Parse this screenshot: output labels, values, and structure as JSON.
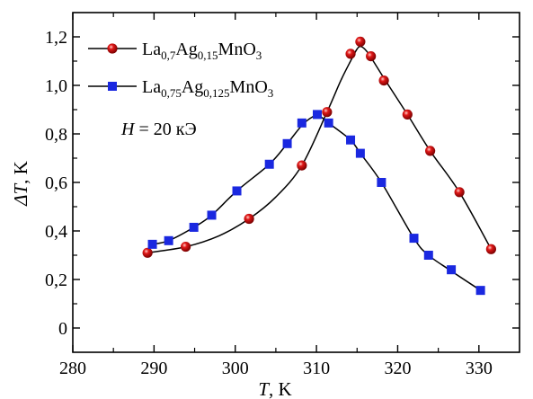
{
  "chart_data": {
    "type": "line",
    "xlabel": {
      "symbol": "T",
      "unit": ", K"
    },
    "ylabel": {
      "symbol": "ΔT",
      "unit": ", K"
    },
    "xlim": [
      280,
      335
    ],
    "ylim": [
      -0.1,
      1.3
    ],
    "xticks": [
      280,
      290,
      300,
      310,
      320,
      330
    ],
    "yticks": [
      {
        "value": 0,
        "label": "0"
      },
      {
        "value": 0.2,
        "label": "0,2"
      },
      {
        "value": 0.4,
        "label": "0,4"
      },
      {
        "value": 0.6,
        "label": "0,6"
      },
      {
        "value": 0.8,
        "label": "0,8"
      },
      {
        "value": 1.0,
        "label": "1,0"
      },
      {
        "value": 1.2,
        "label": "1,2"
      }
    ],
    "legend_position": "top-left",
    "annotation": {
      "symbol": "H",
      "text": " = 20 кЭ"
    },
    "series": [
      {
        "name": "La0,7Ag0,15MnO3",
        "name_parts": [
          {
            "t": "La",
            "sub": false
          },
          {
            "t": "0,7",
            "sub": true
          },
          {
            "t": "Ag",
            "sub": false
          },
          {
            "t": "0,15",
            "sub": true
          },
          {
            "t": "MnO",
            "sub": false
          },
          {
            "t": "3",
            "sub": true
          }
        ],
        "marker": "circle",
        "color": "#e01818",
        "x": [
          289.2,
          293.9,
          301.7,
          308.2,
          311.3,
          314.2,
          315.4,
          316.7,
          318.3,
          321.2,
          324.0,
          327.6,
          331.5
        ],
        "y": [
          0.31,
          0.335,
          0.45,
          0.67,
          0.89,
          1.13,
          1.18,
          1.12,
          1.02,
          0.88,
          0.73,
          0.56,
          0.325
        ],
        "curve": [
          [
            289.2,
            0.31
          ],
          [
            293.9,
            0.335
          ],
          [
            298.0,
            0.38
          ],
          [
            301.7,
            0.45
          ],
          [
            305.0,
            0.54
          ],
          [
            308.2,
            0.67
          ],
          [
            311.3,
            0.89
          ],
          [
            313.0,
            1.02
          ],
          [
            314.2,
            1.1
          ],
          [
            315.0,
            1.15
          ],
          [
            315.5,
            1.16
          ],
          [
            316.2,
            1.14
          ],
          [
            317.0,
            1.1
          ],
          [
            318.3,
            1.03
          ],
          [
            321.2,
            0.88
          ],
          [
            324.0,
            0.73
          ],
          [
            327.6,
            0.56
          ],
          [
            331.5,
            0.325
          ]
        ]
      },
      {
        "name": "La0,75Ag0,125MnO3",
        "name_parts": [
          {
            "t": "La",
            "sub": false
          },
          {
            "t": "0,75",
            "sub": true
          },
          {
            "t": "Ag",
            "sub": false
          },
          {
            "t": "0,125",
            "sub": true
          },
          {
            "t": "MnO",
            "sub": false
          },
          {
            "t": "3",
            "sub": true
          }
        ],
        "marker": "square",
        "color": "#1a28e0",
        "x": [
          289.8,
          291.8,
          294.9,
          297.1,
          300.2,
          304.2,
          306.4,
          308.2,
          310.1,
          311.5,
          314.2,
          315.4,
          318.0,
          322.0,
          323.8,
          326.6,
          330.2
        ],
        "y": [
          0.345,
          0.36,
          0.415,
          0.465,
          0.565,
          0.675,
          0.76,
          0.845,
          0.88,
          0.845,
          0.775,
          0.72,
          0.6,
          0.37,
          0.3,
          0.24,
          0.155
        ],
        "curve": [
          [
            289.8,
            0.345
          ],
          [
            291.8,
            0.36
          ],
          [
            294.9,
            0.415
          ],
          [
            297.1,
            0.465
          ],
          [
            300.2,
            0.565
          ],
          [
            304.2,
            0.675
          ],
          [
            306.4,
            0.76
          ],
          [
            308.2,
            0.835
          ],
          [
            309.5,
            0.87
          ],
          [
            310.3,
            0.875
          ],
          [
            311.5,
            0.845
          ],
          [
            314.2,
            0.775
          ],
          [
            315.4,
            0.72
          ],
          [
            318.0,
            0.6
          ],
          [
            322.0,
            0.37
          ],
          [
            323.8,
            0.3
          ],
          [
            326.6,
            0.235
          ],
          [
            330.2,
            0.155
          ]
        ]
      }
    ]
  }
}
